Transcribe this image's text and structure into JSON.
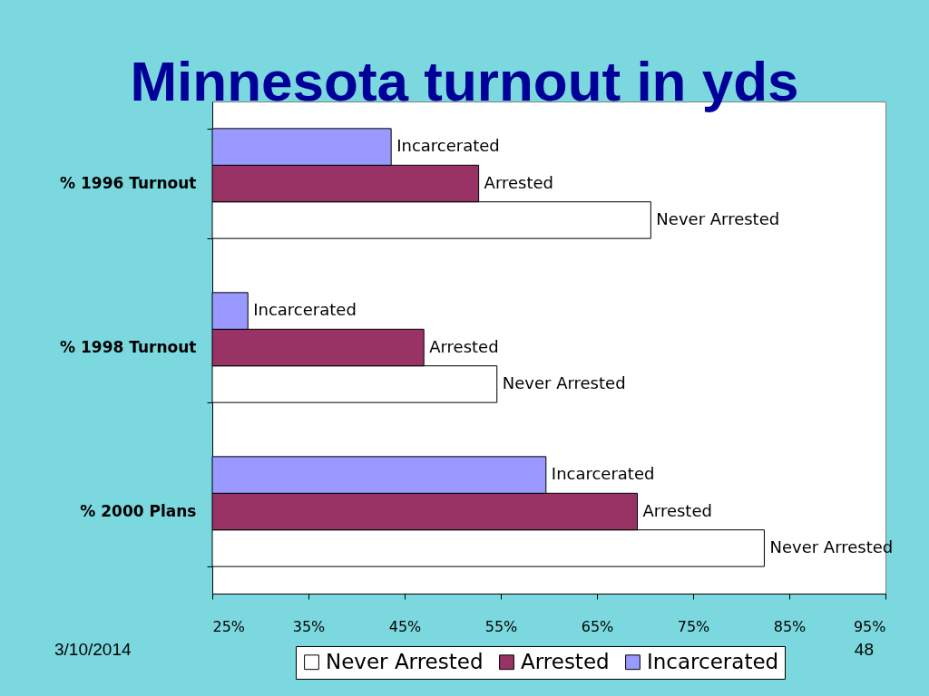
{
  "chart_data": {
    "type": "bar",
    "orientation": "horizontal",
    "title": "Minnesota turnout in yds",
    "categories": [
      "% 1996 Turnout",
      "% 1998 Turnout",
      "% 2000 Plans"
    ],
    "series": [
      {
        "name": "Never Arrested",
        "color": "#ffffff",
        "values": [
          70.6,
          54.6,
          82.4
        ],
        "value_labels": [
          "Never Arrested",
          "Never Arrested",
          "Never Arrested"
        ]
      },
      {
        "name": "Arrested",
        "color": "#993366",
        "values": [
          52.7,
          47.0,
          69.2
        ],
        "value_labels": [
          "Arrested",
          "Arrested",
          "Arrested"
        ]
      },
      {
        "name": "Incarcerated",
        "color": "#9999ff",
        "values": [
          43.6,
          28.7,
          59.7
        ],
        "value_labels": [
          "Incarcerated",
          "Incarcerated",
          "Incarcerated"
        ]
      }
    ],
    "xlim": [
      25,
      95
    ],
    "xticks": [
      {
        "value": 25,
        "label": "25%"
      },
      {
        "value": 35,
        "label": "35%"
      },
      {
        "value": 45,
        "label": "45%"
      },
      {
        "value": 55,
        "label": "55%"
      },
      {
        "value": 65,
        "label": "65%"
      },
      {
        "value": 75,
        "label": "75%"
      },
      {
        "value": 85,
        "label": "85%"
      },
      {
        "value": 95,
        "label": "95%"
      }
    ],
    "grid": false,
    "legend": "bottom",
    "annotations": [
      "3/10/2014",
      "48"
    ]
  }
}
